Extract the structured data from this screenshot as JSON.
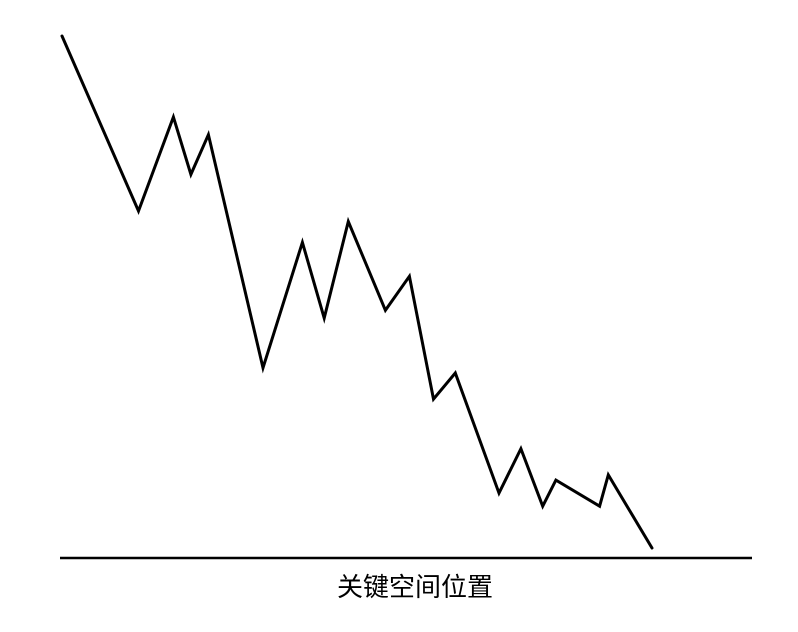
{
  "chart_data": {
    "type": "line",
    "title": "",
    "xlabel": "关键空间位置",
    "ylabel": "",
    "grid": false,
    "legend": "none",
    "x_axis_visible": true,
    "y_axis_visible": false,
    "color": "#000000",
    "series": [
      {
        "values": [
          [
            1.0,
            100.0
          ],
          [
            4.5,
            66.5
          ],
          [
            6.1,
            84.5
          ],
          [
            6.9,
            73.5
          ],
          [
            7.7,
            81.1
          ],
          [
            10.2,
            36.5
          ],
          [
            12.0,
            60.5
          ],
          [
            13.0,
            46.0
          ],
          [
            14.1,
            64.5
          ],
          [
            15.8,
            47.5
          ],
          [
            16.9,
            54.0
          ],
          [
            18.0,
            30.5
          ],
          [
            19.0,
            35.5
          ],
          [
            21.0,
            12.5
          ],
          [
            22.0,
            21.0
          ],
          [
            23.0,
            10.0
          ],
          [
            23.6,
            15.0
          ],
          [
            25.6,
            10.0
          ],
          [
            26.0,
            16.0
          ],
          [
            28.0,
            2.0
          ]
        ]
      }
    ]
  }
}
